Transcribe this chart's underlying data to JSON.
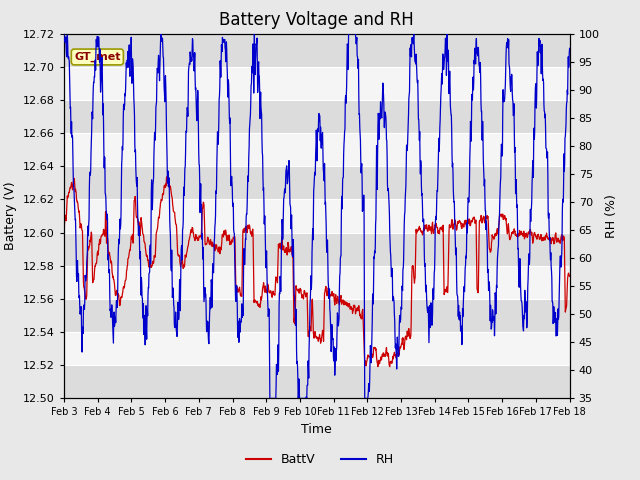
{
  "title": "Battery Voltage and RH",
  "xlabel": "Time",
  "ylabel_left": "Battery (V)",
  "ylabel_right": "RH (%)",
  "annotation": "GT_met",
  "ylim_left": [
    12.5,
    12.72
  ],
  "ylim_right": [
    35,
    100
  ],
  "yticks_left": [
    12.5,
    12.52,
    12.54,
    12.56,
    12.58,
    12.6,
    12.62,
    12.64,
    12.66,
    12.68,
    12.7,
    12.72
  ],
  "yticks_right": [
    35,
    40,
    45,
    50,
    55,
    60,
    65,
    70,
    75,
    80,
    85,
    90,
    95,
    100
  ],
  "xtick_labels": [
    "Feb 3",
    "Feb 4",
    "Feb 5",
    "Feb 6",
    "Feb 7",
    "Feb 8",
    "Feb 9",
    "Feb 10",
    "Feb 11",
    "Feb 12",
    "Feb 13",
    "Feb 14",
    "Feb 15",
    "Feb 16",
    "Feb 17",
    "Feb 18"
  ],
  "color_batt": "#cc0000",
  "color_rh": "#0000cc",
  "fig_bg": "#e8e8e8",
  "band_light": "#f5f5f5",
  "band_dark": "#dcdcdc",
  "legend_labels": [
    "BattV",
    "RH"
  ],
  "title_fontsize": 12,
  "label_fontsize": 9,
  "tick_fontsize": 8,
  "n_days": 16,
  "pts_per_day": 96
}
